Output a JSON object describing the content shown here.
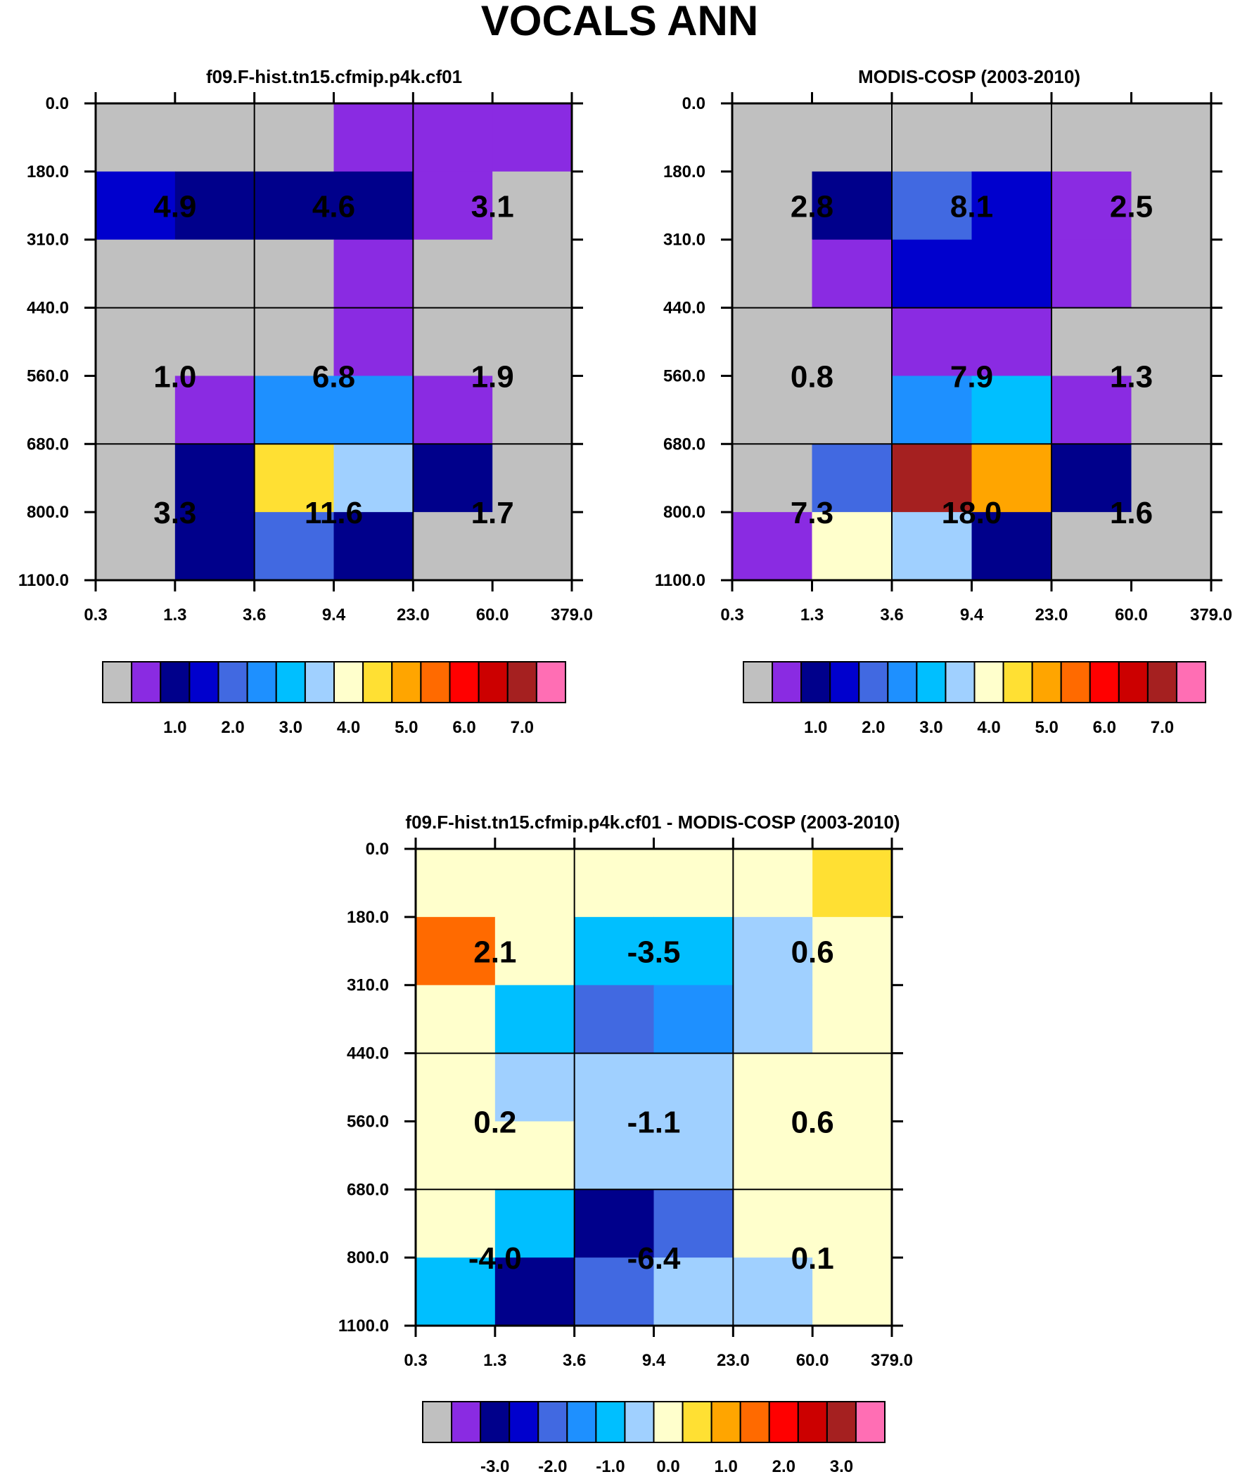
{
  "main_title": "VOCALS ANN",
  "colors": {
    "gray": "#c0c0c0",
    "purple": "#8a2be2",
    "navy": "#00008b",
    "blue": "#0000cd",
    "royal": "#4169e1",
    "dodger": "#1e90ff",
    "sky": "#00bfff",
    "lightblue": "#a0d0ff",
    "cream": "#ffffcc",
    "yellow": "#ffe033",
    "orange": "#ffa500",
    "darkorange": "#ff6a00",
    "red": "#ff0000",
    "darkred": "#cc0000",
    "brown": "#a52020",
    "pink": "#ff6eb4"
  },
  "colorbar_palette": [
    "gray",
    "purple",
    "navy",
    "blue",
    "royal",
    "dodger",
    "sky",
    "lightblue",
    "cream",
    "yellow",
    "orange",
    "darkorange",
    "red",
    "darkred",
    "brown",
    "pink"
  ],
  "chart_data": [
    {
      "type": "heatmap",
      "title": "f09.F-hist.tn15.cfmip.p4k.cf01",
      "x_ticks": [
        "0.3",
        "1.3",
        "3.6",
        "9.4",
        "23.0",
        "60.0",
        "379.0"
      ],
      "y_ticks": [
        "0.0",
        "180.0",
        "310.0",
        "440.0",
        "560.0",
        "680.0",
        "800.0",
        "1100.0"
      ],
      "cells": [
        [
          "gray",
          "gray",
          "gray",
          "purple",
          "purple",
          "purple"
        ],
        [
          "blue",
          "navy",
          "navy",
          "navy",
          "purple",
          "gray"
        ],
        [
          "gray",
          "gray",
          "gray",
          "purple",
          "gray",
          "gray"
        ],
        [
          "gray",
          "gray",
          "gray",
          "purple",
          "gray",
          "gray"
        ],
        [
          "gray",
          "purple",
          "dodger",
          "dodger",
          "purple",
          "gray"
        ],
        [
          "gray",
          "navy",
          "yellow",
          "lightblue",
          "navy",
          "gray"
        ],
        [
          "gray",
          "navy",
          "royal",
          "navy",
          "gray",
          "gray"
        ]
      ],
      "group_values": [
        [
          "4.9",
          "4.6",
          "3.1"
        ],
        [
          "1.0",
          "6.8",
          "1.9"
        ],
        [
          "3.3",
          "11.6",
          "1.7"
        ]
      ],
      "colorbar_labels": [
        "1.0",
        "2.0",
        "3.0",
        "4.0",
        "5.0",
        "6.0",
        "7.0"
      ]
    },
    {
      "type": "heatmap",
      "title": "MODIS-COSP (2003-2010)",
      "x_ticks": [
        "0.3",
        "1.3",
        "3.6",
        "9.4",
        "23.0",
        "60.0",
        "379.0"
      ],
      "y_ticks": [
        "0.0",
        "180.0",
        "310.0",
        "440.0",
        "560.0",
        "680.0",
        "800.0",
        "1100.0"
      ],
      "cells": [
        [
          "gray",
          "gray",
          "gray",
          "gray",
          "gray",
          "gray"
        ],
        [
          "gray",
          "navy",
          "royal",
          "blue",
          "purple",
          "gray"
        ],
        [
          "gray",
          "purple",
          "blue",
          "blue",
          "purple",
          "gray"
        ],
        [
          "gray",
          "gray",
          "purple",
          "purple",
          "gray",
          "gray"
        ],
        [
          "gray",
          "gray",
          "dodger",
          "sky",
          "purple",
          "gray"
        ],
        [
          "gray",
          "royal",
          "brown",
          "orange",
          "navy",
          "gray"
        ],
        [
          "purple",
          "cream",
          "lightblue",
          "navy",
          "gray",
          "gray"
        ]
      ],
      "group_values": [
        [
          "2.8",
          "8.1",
          "2.5"
        ],
        [
          "0.8",
          "7.9",
          "1.3"
        ],
        [
          "7.3",
          "18.0",
          "1.6"
        ]
      ],
      "colorbar_labels": [
        "1.0",
        "2.0",
        "3.0",
        "4.0",
        "5.0",
        "6.0",
        "7.0"
      ]
    },
    {
      "type": "heatmap",
      "title": "f09.F-hist.tn15.cfmip.p4k.cf01 - MODIS-COSP (2003-2010)",
      "x_ticks": [
        "0.3",
        "1.3",
        "3.6",
        "9.4",
        "23.0",
        "60.0",
        "379.0"
      ],
      "y_ticks": [
        "0.0",
        "180.0",
        "310.0",
        "440.0",
        "560.0",
        "680.0",
        "800.0",
        "1100.0"
      ],
      "cells": [
        [
          "cream",
          "cream",
          "cream",
          "cream",
          "cream",
          "yellow"
        ],
        [
          "darkorange",
          "cream",
          "sky",
          "sky",
          "lightblue",
          "cream"
        ],
        [
          "cream",
          "sky",
          "royal",
          "dodger",
          "lightblue",
          "cream"
        ],
        [
          "cream",
          "lightblue",
          "lightblue",
          "lightblue",
          "cream",
          "cream"
        ],
        [
          "cream",
          "cream",
          "lightblue",
          "lightblue",
          "cream",
          "cream"
        ],
        [
          "cream",
          "sky",
          "navy",
          "royal",
          "cream",
          "cream"
        ],
        [
          "sky",
          "navy",
          "royal",
          "lightblue",
          "lightblue",
          "cream"
        ]
      ],
      "group_values": [
        [
          "2.1",
          "-3.5",
          "0.6"
        ],
        [
          "0.2",
          "-1.1",
          "0.6"
        ],
        [
          "-4.0",
          "-6.4",
          "0.1"
        ]
      ],
      "colorbar_labels": [
        "-3.0",
        "-2.0",
        "-1.0",
        "0.0",
        "1.0",
        "2.0",
        "3.0"
      ]
    }
  ]
}
